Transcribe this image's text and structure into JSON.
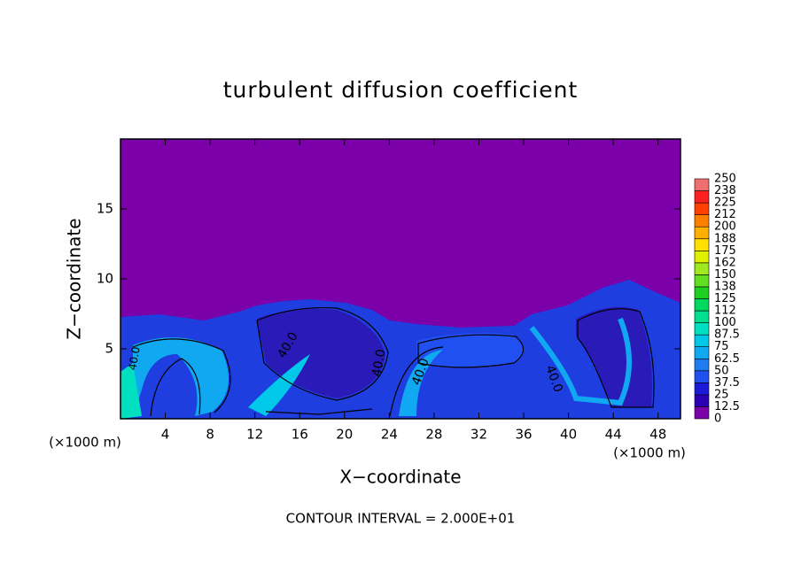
{
  "chart_data": {
    "type": "contour",
    "title": "turbulent diffusion coefficient",
    "x_label": "X−coordinate",
    "y_label": "Z−coordinate",
    "x_unit_label": "(×1000 m)",
    "y_unit_label": "(×1000 m)",
    "footnote": "CONTOUR INTERVAL = 2.000E+01",
    "annotations": [
      "40.0",
      "40.0",
      "40.0",
      "40.0",
      "40.0"
    ],
    "background_color": "#7b00a9",
    "xlim": [
      0,
      50
    ],
    "xticks": [
      4,
      8,
      12,
      16,
      20,
      24,
      28,
      32,
      36,
      40,
      44,
      48
    ],
    "ylim": [
      0,
      20
    ],
    "yticks": [
      5,
      10,
      15
    ],
    "colorbar": {
      "levels": [
        0,
        12.5,
        25,
        37.5,
        50,
        62.5,
        75,
        87.5,
        100,
        112,
        125,
        138,
        150,
        162,
        175,
        188,
        200,
        212,
        225,
        238,
        250
      ],
      "colors": [
        "#7b00a9",
        "#2b00b5",
        "#1a1ad8",
        "#2050f0",
        "#1e7cf0",
        "#10a8f0",
        "#00c8e8",
        "#00e0c0",
        "#00e090",
        "#00d860",
        "#20d020",
        "#60e020",
        "#a0e820",
        "#e0f000",
        "#ffe000",
        "#ffb000",
        "#ff8000",
        "#ff4000",
        "#ff2020",
        "#f07070"
      ]
    }
  }
}
